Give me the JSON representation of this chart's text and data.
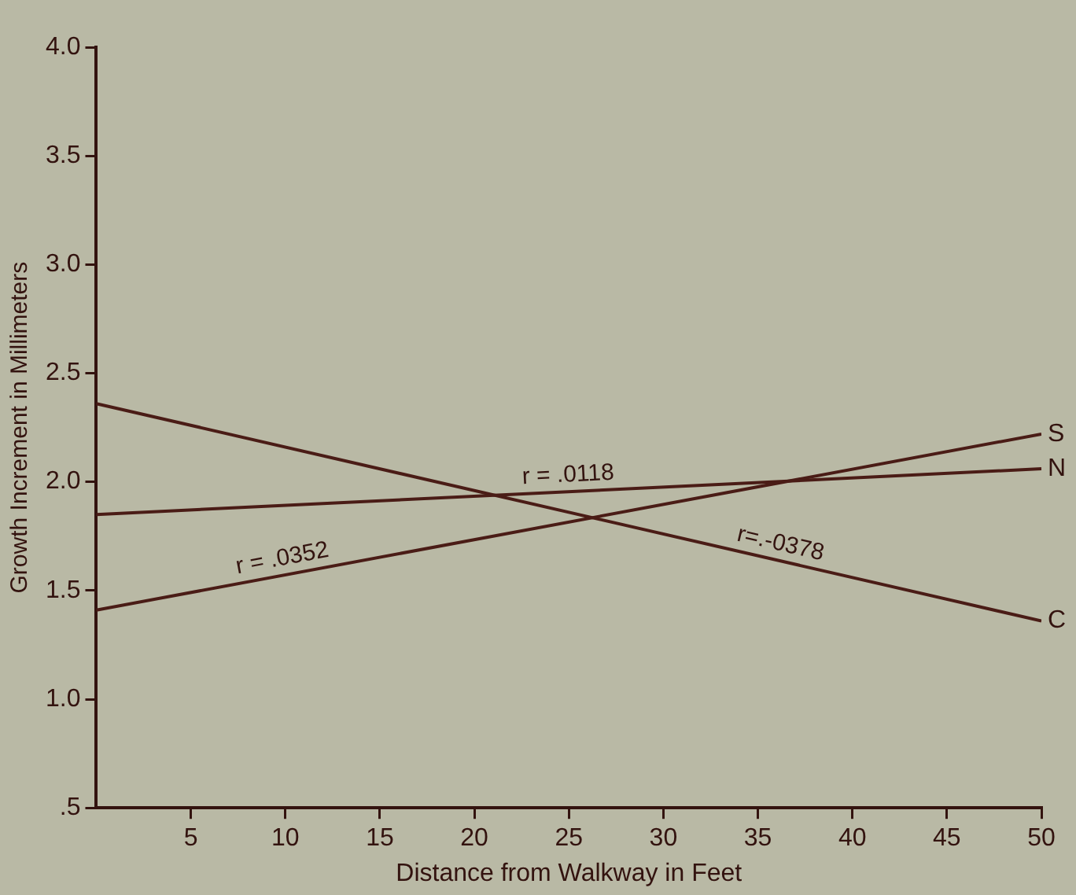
{
  "chart_data": {
    "type": "line",
    "xlabel": "Distance from Walkway in Feet",
    "ylabel": "Growth Increment in Millimeters",
    "xlim": [
      0,
      50
    ],
    "xticks": [
      5,
      10,
      15,
      20,
      25,
      30,
      35,
      40,
      45,
      50
    ],
    "ylim": [
      0.5,
      4.0
    ],
    "yticks": [
      {
        "value": 0.5,
        "label": ".5"
      },
      {
        "value": 1.0,
        "label": "1.0"
      },
      {
        "value": 1.5,
        "label": "1.5"
      },
      {
        "value": 2.0,
        "label": "2.0"
      },
      {
        "value": 2.5,
        "label": "2.5"
      },
      {
        "value": 3.0,
        "label": "3.0"
      },
      {
        "value": 3.5,
        "label": "3.5"
      },
      {
        "value": 4.0,
        "label": "4.0"
      }
    ],
    "x": [
      0,
      50
    ],
    "grid": false,
    "legend": false,
    "marker": "none",
    "line_style": "solid",
    "series": [
      {
        "name": "S",
        "color": "#4a1c16",
        "values": [
          1.41,
          2.22
        ]
      },
      {
        "name": "N",
        "color": "#4a1c16",
        "values": [
          1.85,
          2.06
        ]
      },
      {
        "name": "C",
        "color": "#4a1c16",
        "values": [
          2.36,
          1.36
        ]
      }
    ],
    "annotations": [
      "r = .0352",
      "r = .0118",
      "r=.-0378"
    ]
  }
}
